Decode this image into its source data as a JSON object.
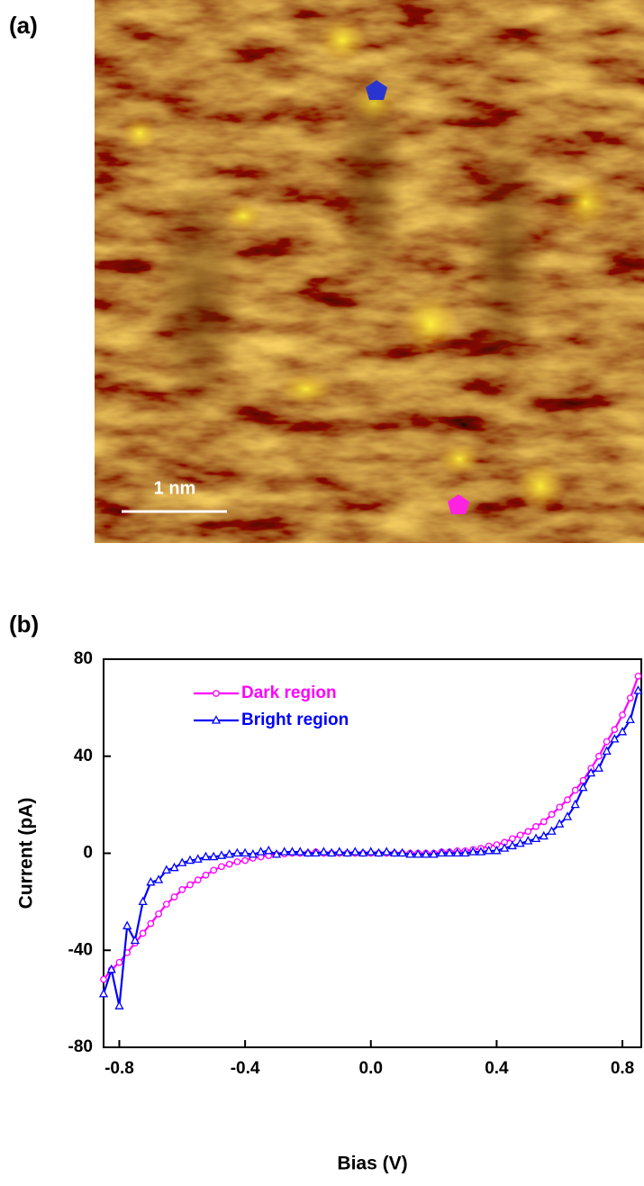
{
  "panel_a": {
    "label": "(a)",
    "scale_bar": "1 nm"
  },
  "panel_b_label": "(b)",
  "chart_data": {
    "type": "line",
    "x_label": "Bias (V)",
    "y_label": "Current (pA)",
    "x": [
      -0.85,
      -0.825,
      -0.8,
      -0.775,
      -0.75,
      -0.725,
      -0.7,
      -0.675,
      -0.65,
      -0.625,
      -0.6,
      -0.575,
      -0.55,
      -0.525,
      -0.5,
      -0.475,
      -0.45,
      -0.425,
      -0.4,
      -0.375,
      -0.35,
      -0.325,
      -0.3,
      -0.275,
      -0.25,
      -0.225,
      -0.2,
      -0.175,
      -0.15,
      -0.125,
      -0.1,
      -0.075,
      -0.05,
      -0.025,
      0,
      0.025,
      0.05,
      0.075,
      0.1,
      0.125,
      0.15,
      0.175,
      0.2,
      0.225,
      0.25,
      0.275,
      0.3,
      0.325,
      0.35,
      0.375,
      0.4,
      0.425,
      0.45,
      0.475,
      0.5,
      0.525,
      0.55,
      0.575,
      0.6,
      0.625,
      0.65,
      0.675,
      0.7,
      0.725,
      0.75,
      0.775,
      0.8,
      0.825,
      0.85
    ],
    "series": [
      {
        "name": "Dark region",
        "color": "#ff00ff",
        "marker": "circle",
        "values": [
          -52,
          -48,
          -45,
          -41,
          -37,
          -33,
          -29,
          -25,
          -21,
          -18,
          -15,
          -13,
          -11,
          -9,
          -7,
          -5.5,
          -4.5,
          -3.5,
          -3,
          -2,
          -1.5,
          -1,
          -0.5,
          -0.3,
          0,
          0,
          0,
          0.5,
          0,
          0,
          0,
          0,
          0,
          0,
          0,
          0,
          0,
          0,
          0,
          0,
          0,
          0,
          0,
          0.5,
          0.5,
          1,
          1,
          1.5,
          2,
          3,
          3.5,
          4.5,
          6,
          7.5,
          9,
          11,
          13,
          16,
          19,
          22,
          26,
          30,
          35,
          40,
          46,
          51,
          57,
          64,
          73
        ]
      },
      {
        "name": "Bright region",
        "color": "#0000ff",
        "marker": "triangle",
        "values": [
          -58,
          -48,
          -63,
          -30,
          -36,
          -20,
          -12,
          -11,
          -7,
          -6,
          -4,
          -3,
          -2.5,
          -1.5,
          -1.5,
          -1,
          -0.5,
          0,
          0,
          -0.5,
          0.5,
          1,
          -0.5,
          0.5,
          0.5,
          0.5,
          0,
          0,
          0.5,
          0,
          0.5,
          0,
          0.5,
          0,
          0.5,
          0,
          0.5,
          0,
          0,
          -0.5,
          -0.5,
          -0.5,
          -0.5,
          0,
          0,
          0,
          0,
          0.5,
          0.5,
          1,
          1,
          2,
          3,
          4,
          5,
          6,
          7,
          9,
          12,
          15,
          20,
          27,
          33,
          35,
          42,
          47,
          50,
          55,
          67
        ]
      }
    ],
    "xlim": [
      -0.85,
      0.86
    ],
    "ylim": [
      -80,
      80
    ],
    "xticks": [
      -0.8,
      -0.4,
      {
        "value": 0,
        "label": "0.0"
      },
      0.4,
      0.8
    ],
    "yticks": [
      -80,
      -40,
      0,
      40,
      80
    ]
  }
}
